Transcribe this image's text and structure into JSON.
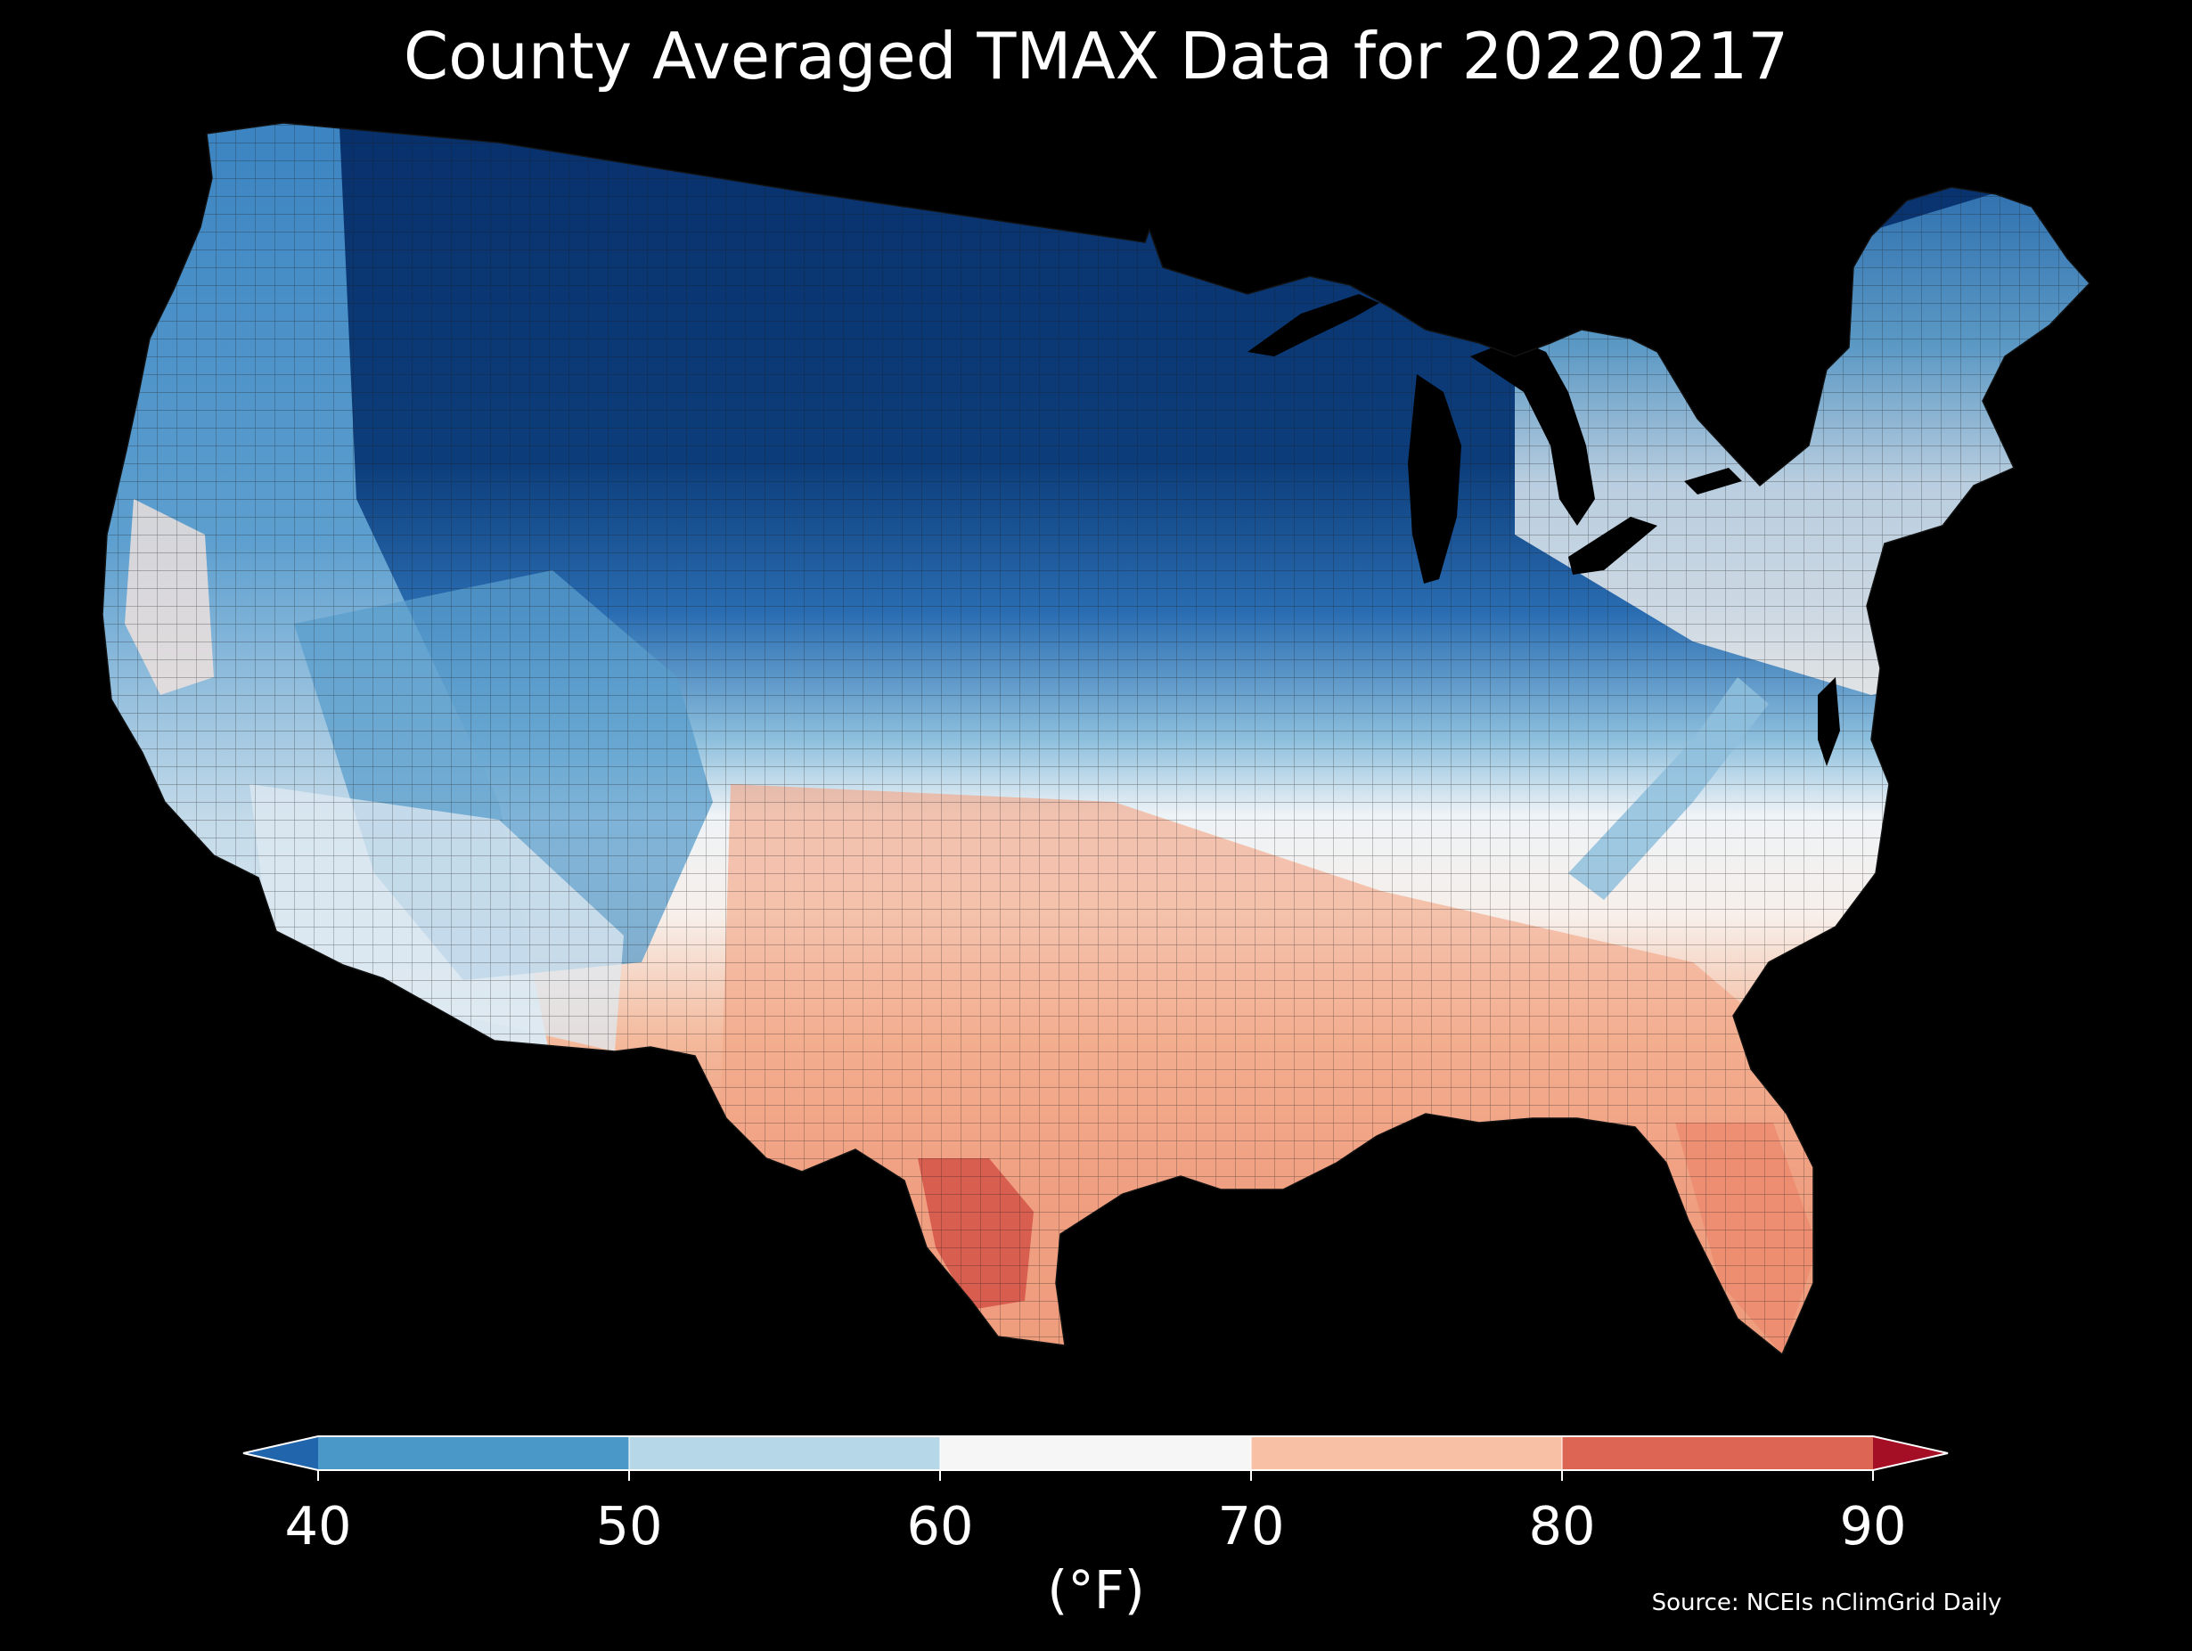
{
  "title": "County Averaged TMAX Data for 20220217",
  "map": {
    "region": "contiguous-united-states-counties",
    "variable": "TMAX",
    "date": "20220217",
    "pattern": "coldest (below 40°F) across the northern plains and upper midwest; 40-50°F over the northern rockies, great basin and new england; 50-60°F along the central band and mid-atlantic; 60-70°F across the ohio valley and central south; 70-80°F over texas and the gulf coast; warmest (80-90°F) in south texas near the rio grande"
  },
  "colorbar": {
    "ticks": [
      "40",
      "50",
      "60",
      "70",
      "80",
      "90"
    ],
    "unit_label": "(°F)",
    "extend": "both",
    "under_color": "#2166ac",
    "over_color": "#a50f26",
    "bins": [
      {
        "min": 40,
        "max": 50,
        "color": "#4a98c8"
      },
      {
        "min": 50,
        "max": 60,
        "color": "#b6d7e8"
      },
      {
        "min": 60,
        "max": 70,
        "color": "#f6f6f6"
      },
      {
        "min": 70,
        "max": 80,
        "color": "#f8c1a5"
      },
      {
        "min": 80,
        "max": 90,
        "color": "#dd6553"
      }
    ]
  },
  "source": "Source: NCEIs nClimGrid Daily"
}
